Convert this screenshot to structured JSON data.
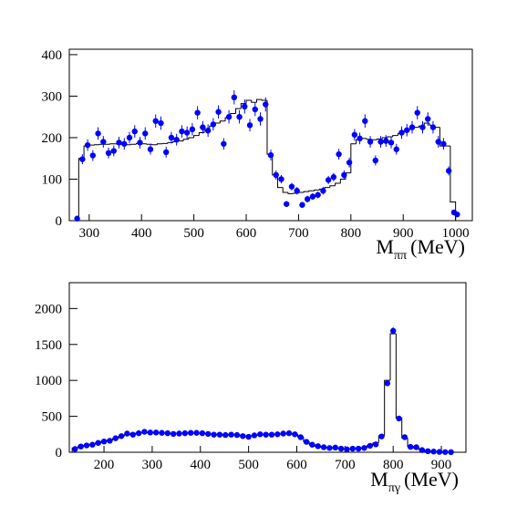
{
  "chart_data": [
    {
      "type": "hist-points",
      "xlabel": {
        "main": "M",
        "sub": "ππ",
        "unit": "(MeV)"
      },
      "xlim": [
        262,
        1032
      ],
      "ylim": [
        0,
        413
      ],
      "xticks": [
        300,
        400,
        500,
        600,
        700,
        800,
        900,
        1000
      ],
      "yticks": [
        0,
        100,
        200,
        300,
        400
      ],
      "points": {
        "color": "#0000ff",
        "x": [
          277,
          287,
          297,
          307,
          317,
          327,
          337,
          347,
          357,
          367,
          377,
          387,
          397,
          407,
          417,
          427,
          437,
          447,
          457,
          467,
          477,
          487,
          497,
          507,
          517,
          527,
          537,
          547,
          557,
          567,
          577,
          587,
          597,
          607,
          617,
          627,
          637,
          647,
          657,
          667,
          677,
          687,
          697,
          707,
          717,
          727,
          737,
          747,
          757,
          767,
          777,
          787,
          797,
          807,
          817,
          827,
          837,
          847,
          857,
          867,
          877,
          887,
          897,
          907,
          917,
          927,
          937,
          947,
          957,
          967,
          977,
          987,
          997,
          1003
        ],
        "values": [
          5,
          148,
          182,
          157,
          210,
          190,
          163,
          168,
          188,
          185,
          200,
          215,
          188,
          210,
          172,
          240,
          235,
          165,
          200,
          195,
          215,
          212,
          220,
          260,
          225,
          217,
          232,
          262,
          185,
          250,
          297,
          250,
          275,
          230,
          268,
          245,
          280,
          158,
          110,
          100,
          40,
          82,
          72,
          38,
          52,
          58,
          62,
          72,
          98,
          105,
          160,
          110,
          140,
          207,
          198,
          240,
          190,
          145,
          190,
          192,
          188,
          172,
          212,
          218,
          225,
          260,
          225,
          245,
          225,
          190,
          185,
          120,
          20,
          15
        ],
        "errors": [
          3,
          12,
          14,
          13,
          15,
          14,
          13,
          13,
          14,
          14,
          14,
          15,
          14,
          15,
          13,
          16,
          16,
          13,
          14,
          14,
          15,
          15,
          15,
          16,
          15,
          15,
          15,
          16,
          14,
          16,
          17,
          16,
          17,
          15,
          16,
          16,
          17,
          13,
          11,
          10,
          7,
          9,
          9,
          7,
          8,
          8,
          8,
          9,
          10,
          10,
          13,
          11,
          12,
          14,
          14,
          16,
          14,
          12,
          14,
          14,
          14,
          13,
          15,
          15,
          15,
          16,
          15,
          16,
          15,
          14,
          14,
          11,
          5,
          4
        ]
      },
      "histogram": {
        "color": "#000000",
        "bins": [
          280,
          290,
          300,
          310,
          320,
          330,
          340,
          350,
          360,
          370,
          380,
          390,
          400,
          410,
          420,
          430,
          440,
          450,
          460,
          470,
          480,
          490,
          500,
          510,
          520,
          530,
          540,
          550,
          560,
          570,
          580,
          590,
          600,
          610,
          620,
          630,
          640,
          650,
          660,
          670,
          680,
          690,
          700,
          710,
          720,
          730,
          740,
          750,
          760,
          770,
          780,
          790,
          800,
          810,
          820,
          830,
          840,
          850,
          860,
          870,
          880,
          890,
          900,
          910,
          920,
          930,
          940,
          950,
          960,
          970,
          980,
          990,
          1000
        ],
        "counts": [
          150,
          180,
          182,
          183,
          184,
          184,
          185,
          185,
          184,
          183,
          184,
          186,
          185,
          184,
          183,
          185,
          186,
          188,
          190,
          192,
          196,
          200,
          205,
          212,
          220,
          228,
          235,
          240,
          248,
          258,
          270,
          282,
          290,
          285,
          292,
          290,
          160,
          110,
          80,
          68,
          65,
          66,
          68,
          70,
          72,
          74,
          76,
          80,
          84,
          90,
          100,
          115,
          185,
          195,
          198,
          196,
          195,
          197,
          200,
          202,
          205,
          210,
          215,
          220,
          225,
          228,
          235,
          230,
          225,
          180,
          180,
          45
        ]
      }
    },
    {
      "type": "hist-points",
      "xlabel": {
        "main": "M",
        "sub": "πγ",
        "unit": "(MeV)"
      },
      "xlim": [
        128,
        951
      ],
      "ylim": [
        0,
        2360
      ],
      "xticks": [
        200,
        300,
        400,
        500,
        600,
        700,
        800,
        900
      ],
      "yticks": [
        0,
        500,
        1000,
        1500,
        2000
      ],
      "points": {
        "color": "#0000ff",
        "x": [
          140,
          152,
          164,
          176,
          188,
          200,
          212,
          224,
          236,
          248,
          260,
          272,
          284,
          296,
          308,
          320,
          332,
          344,
          356,
          368,
          380,
          392,
          404,
          416,
          428,
          440,
          452,
          464,
          476,
          488,
          500,
          512,
          524,
          536,
          548,
          560,
          572,
          584,
          596,
          608,
          620,
          632,
          644,
          656,
          668,
          680,
          692,
          704,
          716,
          728,
          740,
          752,
          764,
          776,
          788,
          800,
          812,
          824,
          836,
          848,
          860,
          872,
          884,
          896,
          908,
          920
        ],
        "values": [
          45,
          80,
          95,
          105,
          130,
          150,
          160,
          195,
          225,
          260,
          245,
          265,
          285,
          275,
          275,
          270,
          265,
          255,
          260,
          265,
          270,
          270,
          265,
          255,
          245,
          245,
          240,
          245,
          240,
          225,
          215,
          235,
          250,
          245,
          245,
          250,
          260,
          265,
          250,
          210,
          145,
          105,
          85,
          70,
          60,
          65,
          50,
          40,
          50,
          50,
          60,
          90,
          110,
          220,
          960,
          1690,
          470,
          210,
          75,
          70,
          30,
          15,
          10,
          5,
          3,
          2
        ],
        "errors": [
          10,
          12,
          13,
          13,
          15,
          16,
          16,
          18,
          19,
          20,
          20,
          21,
          21,
          21,
          21,
          21,
          21,
          20,
          20,
          21,
          21,
          21,
          21,
          20,
          20,
          20,
          20,
          20,
          20,
          19,
          19,
          20,
          20,
          20,
          20,
          20,
          21,
          21,
          20,
          19,
          16,
          13,
          12,
          11,
          10,
          10,
          9,
          8,
          9,
          9,
          10,
          12,
          13,
          19,
          40,
          50,
          28,
          18,
          11,
          11,
          7,
          5,
          4,
          3,
          2,
          2
        ]
      },
      "histogram": {
        "color": "#000000",
        "bins": [
          134,
          146,
          158,
          170,
          182,
          194,
          206,
          218,
          230,
          242,
          254,
          266,
          278,
          290,
          302,
          314,
          326,
          338,
          350,
          362,
          374,
          386,
          398,
          410,
          422,
          434,
          446,
          458,
          470,
          482,
          494,
          506,
          518,
          530,
          542,
          554,
          566,
          578,
          590,
          602,
          614,
          626,
          638,
          650,
          662,
          674,
          686,
          698,
          710,
          722,
          734,
          746,
          758,
          770,
          782,
          794,
          806,
          818,
          830,
          842,
          854,
          866,
          878,
          890,
          902,
          914,
          926
        ],
        "counts": [
          60,
          80,
          95,
          110,
          130,
          150,
          165,
          190,
          220,
          245,
          255,
          265,
          270,
          272,
          272,
          270,
          265,
          262,
          262,
          265,
          268,
          268,
          266,
          260,
          252,
          248,
          246,
          245,
          242,
          232,
          225,
          232,
          242,
          246,
          248,
          250,
          255,
          258,
          252,
          215,
          150,
          105,
          82,
          68,
          62,
          58,
          52,
          48,
          50,
          52,
          62,
          95,
          130,
          230,
          1000,
          1650,
          480,
          200,
          80,
          60,
          30,
          15,
          8,
          5,
          3,
          2
        ]
      }
    }
  ]
}
